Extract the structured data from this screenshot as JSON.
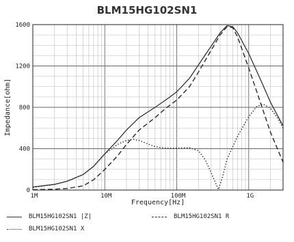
{
  "chart_data": {
    "type": "line",
    "title": "BLM15HG102SN1",
    "xlabel": "Frequency[Hz]",
    "ylabel": "Impedance[ohm]",
    "xscale": "log",
    "xlim": [
      1000000,
      3000000000
    ],
    "ylim": [
      0,
      1600
    ],
    "xticks": [
      {
        "value": 1000000,
        "label": "1M"
      },
      {
        "value": 10000000,
        "label": "10M"
      },
      {
        "value": 100000000,
        "label": "100M"
      },
      {
        "value": 1000000000,
        "label": "1G"
      }
    ],
    "yticks": [
      0,
      400,
      800,
      1200,
      1600
    ],
    "grid": true,
    "legend_position": "bottom",
    "series": [
      {
        "name": "BLM15HG102SN1 |Z|",
        "style": "solid",
        "points": [
          [
            1000000,
            30
          ],
          [
            2000000,
            55
          ],
          [
            3000000,
            85
          ],
          [
            5000000,
            150
          ],
          [
            7000000,
            230
          ],
          [
            10000000,
            350
          ],
          [
            15000000,
            480
          ],
          [
            20000000,
            580
          ],
          [
            30000000,
            700
          ],
          [
            50000000,
            800
          ],
          [
            70000000,
            870
          ],
          [
            100000000,
            950
          ],
          [
            150000000,
            1080
          ],
          [
            200000000,
            1210
          ],
          [
            300000000,
            1390
          ],
          [
            400000000,
            1520
          ],
          [
            500000000,
            1590
          ],
          [
            600000000,
            1580
          ],
          [
            700000000,
            1520
          ],
          [
            1000000000,
            1320
          ],
          [
            1500000000,
            1050
          ],
          [
            2000000000,
            850
          ],
          [
            3000000000,
            620
          ]
        ]
      },
      {
        "name": "BLM15HG102SN1 R",
        "style": "dashed",
        "points": [
          [
            1000000,
            3
          ],
          [
            2000000,
            8
          ],
          [
            3000000,
            15
          ],
          [
            5000000,
            40
          ],
          [
            7000000,
            100
          ],
          [
            10000000,
            200
          ],
          [
            15000000,
            330
          ],
          [
            20000000,
            440
          ],
          [
            30000000,
            580
          ],
          [
            50000000,
            700
          ],
          [
            70000000,
            790
          ],
          [
            100000000,
            870
          ],
          [
            150000000,
            1000
          ],
          [
            200000000,
            1140
          ],
          [
            300000000,
            1350
          ],
          [
            400000000,
            1500
          ],
          [
            500000000,
            1580
          ],
          [
            600000000,
            1570
          ],
          [
            700000000,
            1480
          ],
          [
            1000000000,
            1180
          ],
          [
            1500000000,
            820
          ],
          [
            2000000000,
            560
          ],
          [
            3000000000,
            270
          ]
        ]
      },
      {
        "name": "BLM15HG102SN1 X",
        "style": "dotted",
        "points": [
          [
            1000000,
            25
          ],
          [
            2000000,
            55
          ],
          [
            3000000,
            85
          ],
          [
            5000000,
            150
          ],
          [
            7000000,
            230
          ],
          [
            10000000,
            350
          ],
          [
            15000000,
            440
          ],
          [
            20000000,
            480
          ],
          [
            25000000,
            490
          ],
          [
            30000000,
            480
          ],
          [
            40000000,
            445
          ],
          [
            50000000,
            420
          ],
          [
            70000000,
            405
          ],
          [
            100000000,
            405
          ],
          [
            150000000,
            410
          ],
          [
            200000000,
            380
          ],
          [
            250000000,
            290
          ],
          [
            300000000,
            170
          ],
          [
            350000000,
            60
          ],
          [
            380000000,
            5
          ],
          [
            430000000,
            120
          ],
          [
            500000000,
            300
          ],
          [
            700000000,
            520
          ],
          [
            1000000000,
            710
          ],
          [
            1300000000,
            810
          ],
          [
            1600000000,
            830
          ],
          [
            2000000000,
            790
          ],
          [
            2500000000,
            700
          ],
          [
            3000000000,
            600
          ]
        ]
      }
    ]
  }
}
